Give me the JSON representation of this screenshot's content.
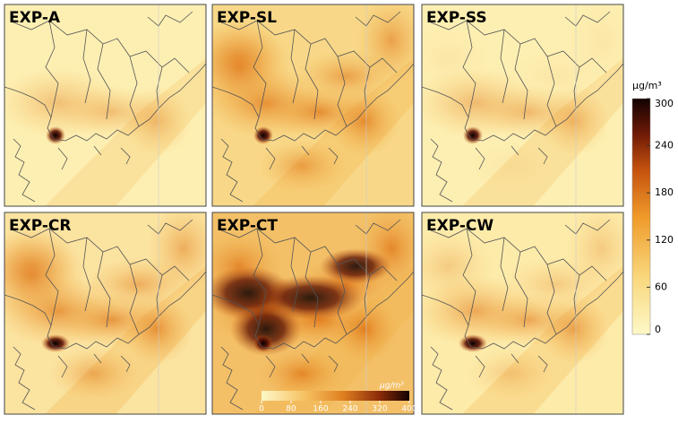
{
  "panels": [
    {
      "title": "EXP-A"
    },
    {
      "title": "EXP-SL"
    },
    {
      "title": "EXP-SS"
    },
    {
      "title": "EXP-CR"
    },
    {
      "title": "EXP-CT"
    },
    {
      "title": "EXP-CW"
    }
  ],
  "colorbar": {
    "unit": "μg/m³",
    "range": [
      0,
      300
    ],
    "ticks": [
      0,
      60,
      120,
      180,
      240,
      300
    ]
  },
  "inset_colorbar": {
    "unit": "μg/m³",
    "range": [
      0,
      400
    ],
    "ticks": [
      0,
      80,
      160,
      240,
      320,
      400
    ]
  }
}
